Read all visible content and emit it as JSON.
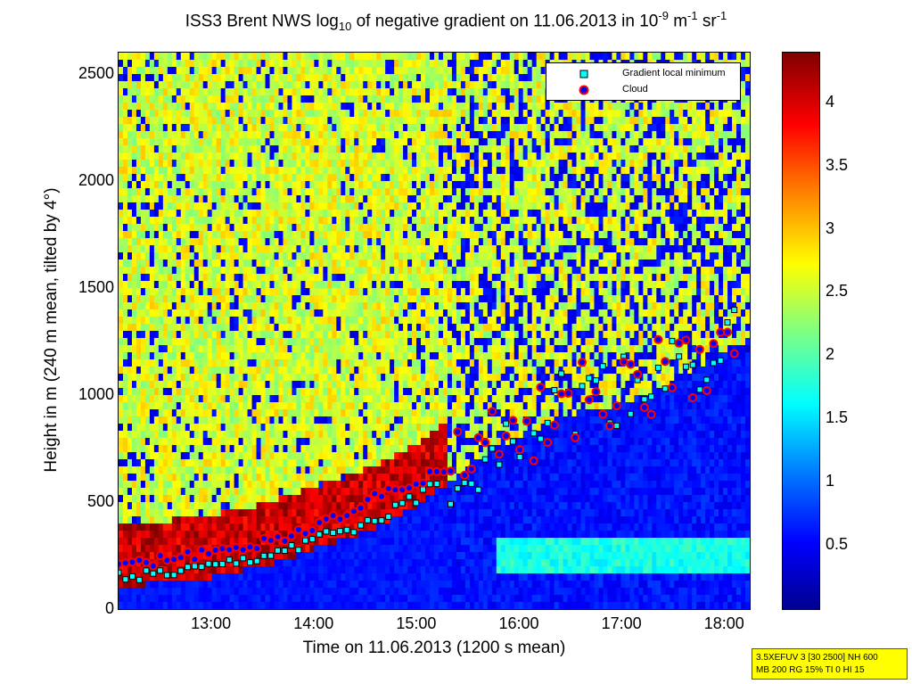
{
  "title": {
    "pre": "ISS3 Brent NWS log",
    "sub": "10",
    "mid": " of negative gradient on 11.06.2013 in 10",
    "sup1": "-9",
    "unit1": " m",
    "sup2": "-1",
    "unit2": " sr",
    "sup3": "-1"
  },
  "legend": {
    "items": [
      "Gradient local minimum",
      "Cloud"
    ]
  },
  "info_box": {
    "line1": "3.5XEFUV 3 [30 2500] NH 600",
    "line2": "MB 200 RG 15% TI 0 HI 15"
  },
  "colors": {
    "minimum_marker": "#00ffff",
    "cloud_marker_fill": "#0000ff",
    "cloud_marker_edge": "#ff0000",
    "background_low": "#00008f",
    "background_high": "#800000"
  },
  "chart_data": {
    "type": "heatmap",
    "xlabel": "Time on 11.06.2013 (1200 s mean)",
    "ylabel": "Height in m (240 m mean, tilted by 4°)",
    "xlim": [
      12.1,
      18.25
    ],
    "ylim": [
      0,
      2600
    ],
    "x_ticks": [
      "13:00",
      "14:00",
      "15:00",
      "16:00",
      "17:00",
      "18:00"
    ],
    "x_tick_values": [
      13,
      14,
      15,
      16,
      17,
      18
    ],
    "y_ticks": [
      0,
      500,
      1000,
      1500,
      2000,
      2500
    ],
    "colorbar": {
      "colormap": "jet",
      "range": [
        0,
        4.4
      ],
      "ticks": [
        0.5,
        1,
        1.5,
        2,
        2.5,
        3,
        3.5,
        4
      ]
    },
    "legend_position": "top-right",
    "series": [
      {
        "name": "Gradient local minimum",
        "x": [
          12.1,
          12.5,
          13.0,
          13.5,
          14.0,
          14.5,
          15.0,
          15.5,
          16.0,
          16.5,
          17.0,
          17.5,
          18.0
        ],
        "y": [
          150,
          160,
          190,
          240,
          320,
          400,
          520,
          700,
          850,
          950,
          1000,
          1100,
          1250
        ]
      },
      {
        "name": "Cloud",
        "x": [
          12.1,
          12.5,
          13.0,
          13.5,
          14.0,
          14.5,
          15.0,
          15.5,
          16.0,
          16.5,
          17.0,
          17.5,
          18.0
        ],
        "y": [
          200,
          230,
          260,
          310,
          380,
          500,
          600,
          700,
          800,
          950,
          1050,
          1100,
          1250
        ]
      }
    ]
  }
}
